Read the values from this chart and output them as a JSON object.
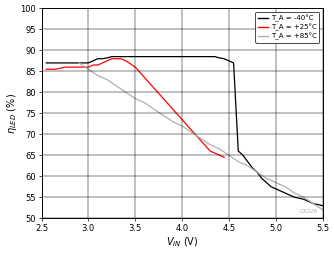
{
  "title": "",
  "xlabel": "V_{IN} (V)",
  "ylabel": "\\eta_{LED} (%)",
  "xlim": [
    2.5,
    5.5
  ],
  "ylim": [
    50,
    100
  ],
  "xticks": [
    2.5,
    3.0,
    3.5,
    4.0,
    4.5,
    5.0,
    5.5
  ],
  "yticks": [
    50,
    55,
    60,
    65,
    70,
    75,
    80,
    85,
    90,
    95,
    100
  ],
  "series": [
    {
      "label": "T_A = -40C",
      "color": "#000000",
      "x": [
        2.55,
        2.65,
        2.75,
        2.85,
        2.95,
        3.0,
        3.05,
        3.1,
        3.15,
        3.2,
        3.25,
        3.3,
        3.35,
        3.4,
        3.45,
        3.5,
        3.55,
        3.6,
        3.65,
        3.7,
        3.75,
        3.8,
        3.85,
        3.9,
        3.95,
        4.0,
        4.05,
        4.1,
        4.15,
        4.2,
        4.25,
        4.3,
        4.35,
        4.4,
        4.45,
        4.5,
        4.55,
        4.6,
        4.65,
        4.7,
        4.75,
        4.8,
        4.85,
        4.9,
        4.95,
        5.0,
        5.1,
        5.2,
        5.3,
        5.4,
        5.5
      ],
      "y": [
        87.0,
        87.0,
        87.0,
        87.0,
        87.0,
        87.0,
        87.5,
        88.0,
        88.0,
        88.2,
        88.5,
        88.5,
        88.5,
        88.5,
        88.5,
        88.5,
        88.5,
        88.5,
        88.5,
        88.5,
        88.5,
        88.5,
        88.5,
        88.5,
        88.5,
        88.5,
        88.5,
        88.5,
        88.5,
        88.5,
        88.5,
        88.5,
        88.5,
        88.2,
        88.0,
        87.5,
        87.0,
        66.0,
        65.0,
        63.5,
        62.0,
        61.0,
        59.5,
        58.5,
        57.5,
        57.0,
        56.0,
        55.0,
        54.5,
        53.5,
        53.0
      ]
    },
    {
      "label": "T_A = +25C",
      "color": "#ff0000",
      "x": [
        2.55,
        2.65,
        2.75,
        2.85,
        2.95,
        3.0,
        3.05,
        3.1,
        3.15,
        3.2,
        3.25,
        3.3,
        3.35,
        3.4,
        3.5,
        3.6,
        3.7,
        3.8,
        3.9,
        4.0,
        4.1,
        4.2,
        4.3,
        4.35,
        4.4,
        4.45
      ],
      "y": [
        85.5,
        85.5,
        86.0,
        86.0,
        86.0,
        86.0,
        86.5,
        86.5,
        87.0,
        87.5,
        88.0,
        88.0,
        88.0,
        87.5,
        86.0,
        83.5,
        81.0,
        78.5,
        76.0,
        73.5,
        71.0,
        68.5,
        66.0,
        65.5,
        65.0,
        64.5
      ]
    },
    {
      "label": "T_A = +85C",
      "color": "#b0b0b0",
      "x": [
        2.9,
        3.0,
        3.1,
        3.2,
        3.3,
        3.4,
        3.5,
        3.6,
        3.7,
        3.8,
        3.9,
        4.0,
        4.1,
        4.2,
        4.3,
        4.4,
        4.5,
        4.6,
        4.7,
        4.8,
        4.9,
        5.0,
        5.1,
        5.2,
        5.3,
        5.4,
        5.5
      ],
      "y": [
        87.0,
        85.5,
        84.0,
        83.0,
        81.5,
        80.0,
        78.5,
        77.5,
        76.0,
        74.5,
        73.0,
        72.0,
        70.5,
        69.0,
        67.5,
        66.5,
        65.0,
        63.5,
        62.5,
        61.0,
        59.5,
        58.5,
        57.5,
        56.0,
        55.0,
        53.5,
        52.0
      ]
    }
  ],
  "legend_labels": [
    "T_A = -40°C",
    "T_A = +25°C",
    "T_A = +85°C"
  ],
  "legend_colors": [
    "#000000",
    "#ff0000",
    "#b0b0b0"
  ],
  "grid_color": "#000000",
  "bg_color": "#ffffff",
  "watermark": "CX226"
}
